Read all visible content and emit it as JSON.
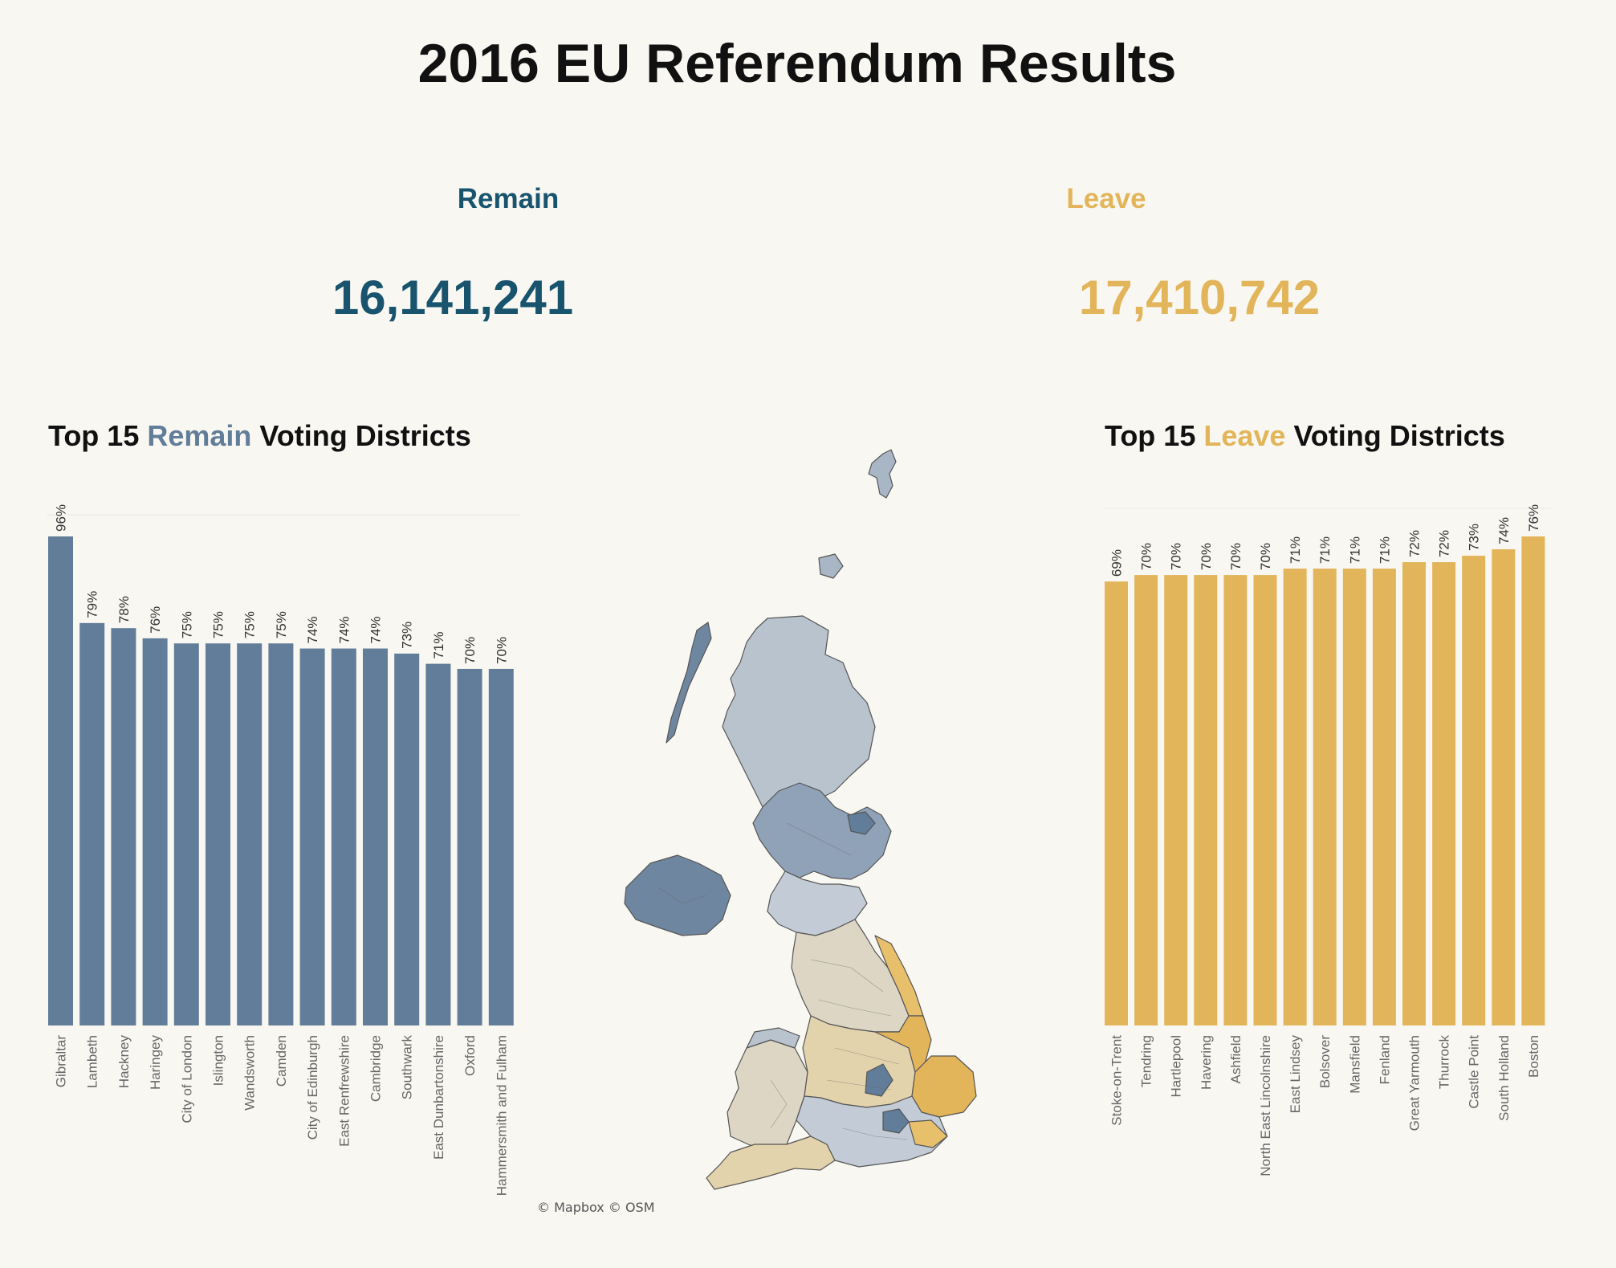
{
  "title": "2016 EU Referendum Results",
  "kpis": {
    "remain": {
      "label": "Remain",
      "value": "16,141,241"
    },
    "leave": {
      "label": "Leave",
      "value": "17,410,742"
    }
  },
  "colors": {
    "remain": "#627d99",
    "remain_text": "#19546e",
    "leave": "#e3b55a",
    "background": "#f8f7f2"
  },
  "map": {
    "attribution": "© Mapbox © OSM",
    "icon": "uk-choropleth-map"
  },
  "chart_data": [
    {
      "type": "bar",
      "title": {
        "prefix": "Top 15 ",
        "highlight": "Remain",
        "suffix": " Voting Districts"
      },
      "categories": [
        "Gibraltar",
        "Lambeth",
        "Hackney",
        "Haringey",
        "City of London",
        "Islington",
        "Wandsworth",
        "Camden",
        "City of Edinburgh",
        "East Renfrewshire",
        "Cambridge",
        "Southwark",
        "East Dunbartonshire",
        "Oxford",
        "Hammersmith and Fulham"
      ],
      "values": [
        96,
        79,
        78,
        76,
        75,
        75,
        75,
        75,
        74,
        74,
        74,
        73,
        71,
        70,
        70
      ],
      "labels": [
        "96%",
        "79%",
        "78%",
        "76%",
        "75%",
        "75%",
        "75%",
        "75%",
        "74%",
        "74%",
        "74%",
        "73%",
        "71%",
        "70%",
        "70%"
      ],
      "ylim": [
        0,
        96
      ],
      "color": "#627d99",
      "grid": true
    },
    {
      "type": "bar",
      "title": {
        "prefix": "Top 15 ",
        "highlight": "Leave",
        "suffix": " Voting Districts"
      },
      "categories": [
        "Stoke-on-Trent",
        "Tendring",
        "Hartlepool",
        "Havering",
        "Ashfield",
        "North East Lincolnshire",
        "East Lindsey",
        "Bolsover",
        "Mansfield",
        "Fenland",
        "Great Yarmouth",
        "Thurrock",
        "Castle Point",
        "South Holland",
        "Boston"
      ],
      "values": [
        69,
        70,
        70,
        70,
        70,
        70,
        71,
        71,
        71,
        71,
        72,
        72,
        73,
        74,
        76
      ],
      "labels": [
        "69%",
        "70%",
        "70%",
        "70%",
        "70%",
        "70%",
        "71%",
        "71%",
        "71%",
        "71%",
        "72%",
        "72%",
        "73%",
        "74%",
        "76%"
      ],
      "ylim": [
        0,
        76
      ],
      "color": "#e3b55a",
      "grid": true
    }
  ]
}
